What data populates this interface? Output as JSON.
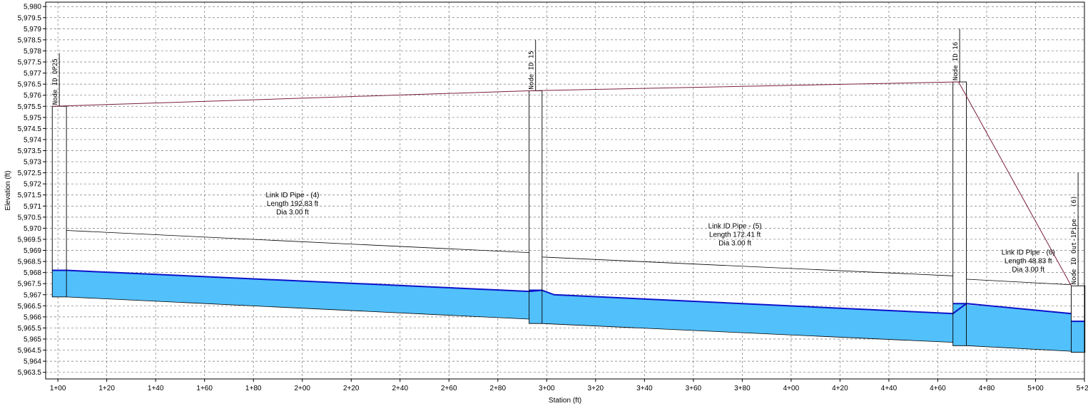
{
  "chart_data": {
    "type": "profile",
    "xlabel": "Station (ft)",
    "ylabel": "Elevation (ft)",
    "xlim": [
      95,
      520
    ],
    "ylim": [
      5963.2,
      5980.2
    ],
    "x_tick_labels": [
      "1+00",
      "1+20",
      "1+40",
      "1+60",
      "1+80",
      "2+00",
      "2+20",
      "2+40",
      "2+60",
      "2+80",
      "3+00",
      "3+20",
      "3+40",
      "3+60",
      "3+80",
      "4+00",
      "4+20",
      "4+40",
      "4+60",
      "4+80",
      "5+00",
      "5+20"
    ],
    "x_tick_values": [
      100,
      120,
      140,
      160,
      180,
      200,
      220,
      240,
      260,
      280,
      300,
      320,
      340,
      360,
      380,
      400,
      420,
      440,
      460,
      480,
      500,
      520
    ],
    "y_tick_labels": [
      "5,963.5",
      "5,964",
      "5,964.5",
      "5,965",
      "5,965.5",
      "5,966",
      "5,966.5",
      "5,967",
      "5,967.5",
      "5,968",
      "5,968.5",
      "5,969",
      "5,969.5",
      "5,970",
      "5,970.5",
      "5,971",
      "5,971.5",
      "5,972",
      "5,972.5",
      "5,973",
      "5,973.5",
      "5,974",
      "5,974.5",
      "5,975",
      "5,975.5",
      "5,976",
      "5,976.5",
      "5,977",
      "5,977.5",
      "5,978",
      "5,978.5",
      "5,979",
      "5,979.5",
      "5,980"
    ],
    "y_tick_values": [
      5963.5,
      5964,
      5964.5,
      5965,
      5965.5,
      5966,
      5966.5,
      5967,
      5967.5,
      5968,
      5968.5,
      5969,
      5969.5,
      5970,
      5970.5,
      5971,
      5971.5,
      5972,
      5972.5,
      5973,
      5973.5,
      5974,
      5974.5,
      5975,
      5975.5,
      5976,
      5976.5,
      5977,
      5977.5,
      5978,
      5978.5,
      5979,
      5979.5,
      5980
    ],
    "grid": true,
    "nodes": [
      {
        "label": "Node ID DP25",
        "x0": 97.7,
        "x1": 103.5,
        "invert": 5966.9,
        "rim": 5975.5,
        "hgl": 5968.1,
        "stem_top": 5977.9
      },
      {
        "label": "Node ID 15",
        "x0": 292.8,
        "x1": 298.1,
        "invert": 5965.7,
        "rim": 5976.2,
        "hgl": 5967.2,
        "stem_top": 5978.5
      },
      {
        "label": "Node ID 16",
        "x0": 466.2,
        "x1": 471.7,
        "invert": 5964.7,
        "rim": 5976.6,
        "hgl": 5966.6,
        "stem_top": 5979.0
      },
      {
        "label": "Node ID Out-1Pipe - (6)",
        "x0": 514.6,
        "x1": 520.2,
        "invert": 5964.4,
        "rim": 5967.4,
        "hgl": 5965.8,
        "stem_top": 5972.5
      }
    ],
    "links": [
      {
        "name": "Link ID Pipe - (4)",
        "length": "Length 192.83 ft",
        "dia": "Dia 3.00 ft",
        "x_start": 103.5,
        "x_end": 292.8,
        "inv_start": 5966.9,
        "inv_end": 5965.9,
        "crown_start": 5969.9,
        "crown_end": 5968.9,
        "hgl_start": 5968.1,
        "hgl_end": 5967.15,
        "label_x": 196,
        "label_y": 5971.4
      },
      {
        "name": "Link ID Pipe - (5)",
        "length": "Length 172.41 ft",
        "dia": "Dia 3.00 ft",
        "x_start": 298.1,
        "x_end": 466.2,
        "inv_start": 5965.7,
        "inv_end": 5964.85,
        "crown_start": 5968.7,
        "crown_end": 5967.85,
        "hgl_start": 5967.2,
        "hgl_end": 5966.15,
        "label_x": 377,
        "label_y": 5970.0
      },
      {
        "name": "Link ID Pipe - (6)",
        "length": "Length 48.83 ft",
        "dia": "Dia 3.00 ft",
        "x_start": 471.7,
        "x_end": 514.6,
        "inv_start": 5964.7,
        "inv_end": 5964.45,
        "crown_start": 5967.7,
        "crown_end": 5967.45,
        "hgl_start": 5966.55,
        "hgl_end": 5966.15,
        "label_x": 497,
        "label_y": 5968.8
      }
    ],
    "hgl_profile": [
      [
        103.5,
        5968.1
      ],
      [
        292.8,
        5967.15
      ],
      [
        298.1,
        5967.2
      ],
      [
        303,
        5967.0
      ],
      [
        466.2,
        5966.15
      ],
      [
        471.7,
        5966.6
      ],
      [
        514.6,
        5966.15
      ]
    ],
    "egl_profile": [
      [
        97.7,
        5975.5
      ],
      [
        292.8,
        5976.2
      ],
      [
        468.5,
        5976.6
      ],
      [
        514.6,
        5967.4
      ]
    ],
    "colors": {
      "water": "#52c0fb",
      "hgl": "#0c12c9",
      "egl": "#7a1f3d",
      "pipe": "#000000",
      "grid": "#777777"
    }
  }
}
